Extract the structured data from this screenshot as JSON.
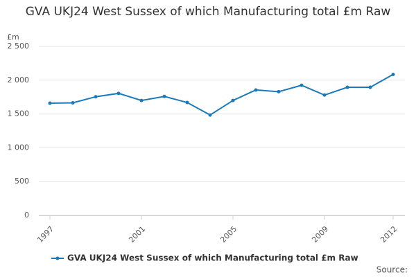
{
  "chart_data": {
    "type": "line",
    "title": "GVA UKJ24 West Sussex of which Manufacturing total £m Raw",
    "y_label": "£m",
    "source": "Source:",
    "x": [
      1997,
      1998,
      1999,
      2000,
      2001,
      2002,
      2003,
      2004,
      2005,
      2006,
      2007,
      2008,
      2009,
      2010,
      2011,
      2012
    ],
    "series": [
      {
        "name": "GVA UKJ24 West Sussex of which Manufacturing total £m Raw",
        "color": "#1a7ab8",
        "values": [
          1660,
          1665,
          1755,
          1805,
          1700,
          1760,
          1670,
          1485,
          1700,
          1855,
          1830,
          1925,
          1780,
          1895,
          1895,
          2085
        ]
      }
    ],
    "xlim": [
      1997,
      2012
    ],
    "xticks": [
      1997,
      2001,
      2005,
      2009,
      2012
    ],
    "ylim": [
      0,
      2500
    ],
    "yticks": [
      0,
      500,
      {
        "value": 1000,
        "label": "1 000"
      },
      {
        "value": 1500,
        "label": "1 500"
      },
      {
        "value": 2000,
        "label": "2 000"
      },
      {
        "value": 2500,
        "label": "2 500"
      }
    ],
    "grid": true
  }
}
